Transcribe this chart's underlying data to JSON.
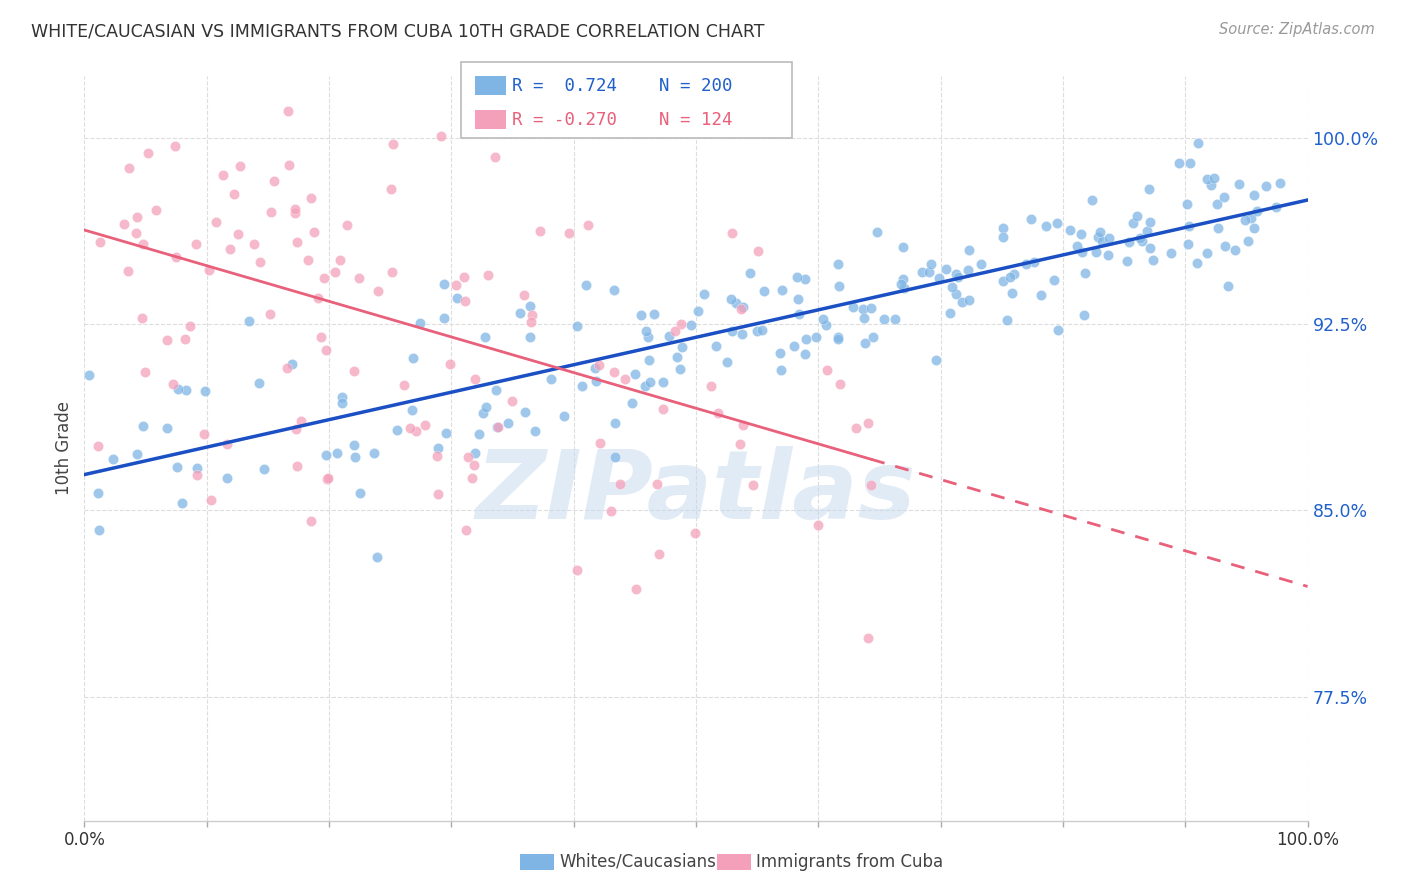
{
  "title": "WHITE/CAUCASIAN VS IMMIGRANTS FROM CUBA 10TH GRADE CORRELATION CHART",
  "source_text": "Source: ZipAtlas.com",
  "ylabel": "10th Grade",
  "xlim": [
    0.0,
    1.0
  ],
  "ylim": [
    0.725,
    1.025
  ],
  "ytick_labels": [
    "77.5%",
    "85.0%",
    "92.5%",
    "100.0%"
  ],
  "ytick_values": [
    0.775,
    0.85,
    0.925,
    1.0
  ],
  "blue_R": "0.724",
  "blue_N": "200",
  "pink_R": "-0.270",
  "pink_N": "124",
  "blue_color": "#7EB5E5",
  "pink_color": "#F4A0BA",
  "blue_line_color": "#1B4FC4",
  "pink_line_color": "#E8607A",
  "watermark": "ZIPatlas",
  "legend_label_blue": "Whites/Caucasians",
  "legend_label_pink": "Immigrants from Cuba",
  "background_color": "#FFFFFF",
  "grid_color": "#DDDDDD"
}
